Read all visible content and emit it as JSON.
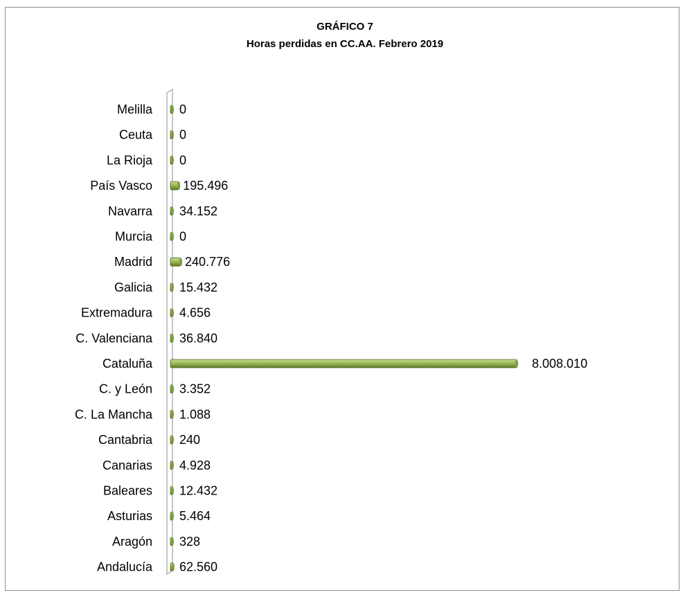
{
  "chart_data": {
    "type": "bar",
    "orientation": "horizontal",
    "title": "GRÁFICO 7",
    "subtitle": "Horas perdidas en CC.AA. Febrero 2019",
    "categories": [
      "Andalucía",
      "Aragón",
      "Asturias",
      "Baleares",
      "Canarias",
      "Cantabria",
      "C. La Mancha",
      "C. y León",
      "Cataluña",
      "C. Valenciana",
      "Extremadura",
      "Galicia",
      "Madrid",
      "Murcia",
      "Navarra",
      "País Vasco",
      "La Rioja",
      "Ceuta",
      "Melilla"
    ],
    "values": [
      62560,
      328,
      5464,
      12432,
      4928,
      240,
      1088,
      3352,
      8008010,
      36840,
      4656,
      15432,
      240776,
      0,
      34152,
      195496,
      0,
      0,
      0
    ],
    "value_labels": [
      "62.560",
      "328",
      "5.464",
      "12.432",
      "4.928",
      "240",
      "1.088",
      "3.352",
      "8.008.010",
      "36.840",
      "4.656",
      "15.432",
      "240.776",
      "0",
      "34.152",
      "195.496",
      "0",
      "0",
      "0"
    ],
    "xlim": [
      0,
      8500000
    ],
    "grid": false,
    "legend": "none",
    "bar_color": "#9bbb59",
    "bar_edge_color": "#4f6228"
  }
}
